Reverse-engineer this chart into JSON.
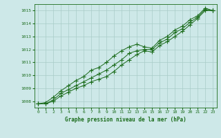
{
  "title": "Graphe pression niveau de la mer (hPa)",
  "xlabel_hours": [
    0,
    1,
    2,
    3,
    4,
    5,
    6,
    7,
    8,
    9,
    10,
    11,
    12,
    13,
    14,
    15,
    16,
    17,
    18,
    19,
    20,
    21,
    22,
    23
  ],
  "line1": [
    1007.8,
    1007.8,
    1008.0,
    1008.4,
    1008.7,
    1009.0,
    1009.2,
    1009.5,
    1009.7,
    1009.9,
    1010.3,
    1010.8,
    1011.2,
    1011.6,
    1011.9,
    1011.8,
    1012.3,
    1012.6,
    1013.0,
    1013.4,
    1013.9,
    1014.4,
    1015.0,
    1015.0
  ],
  "line2": [
    1007.8,
    1007.8,
    1008.1,
    1008.6,
    1008.9,
    1009.2,
    1009.5,
    1009.8,
    1010.1,
    1010.4,
    1010.8,
    1011.2,
    1011.7,
    1011.9,
    1012.0,
    1012.0,
    1012.5,
    1012.8,
    1013.3,
    1013.6,
    1014.1,
    1014.5,
    1015.1,
    1015.0
  ],
  "line3": [
    1007.8,
    1007.9,
    1008.3,
    1008.8,
    1009.2,
    1009.6,
    1009.9,
    1010.4,
    1010.6,
    1011.0,
    1011.5,
    1011.9,
    1012.2,
    1012.4,
    1012.2,
    1012.1,
    1012.7,
    1013.0,
    1013.5,
    1013.8,
    1014.3,
    1014.6,
    1015.2,
    1015.0
  ],
  "ylim": [
    1007.5,
    1015.5
  ],
  "yticks": [
    1008,
    1009,
    1010,
    1011,
    1012,
    1013,
    1014,
    1015
  ],
  "line_color": "#1a6b1a",
  "bg_color": "#cde8e8",
  "grid_color": "#a8ccc8",
  "text_color": "#1a6b1a",
  "marker": "+",
  "marker_size": 4,
  "linewidth": 0.7
}
